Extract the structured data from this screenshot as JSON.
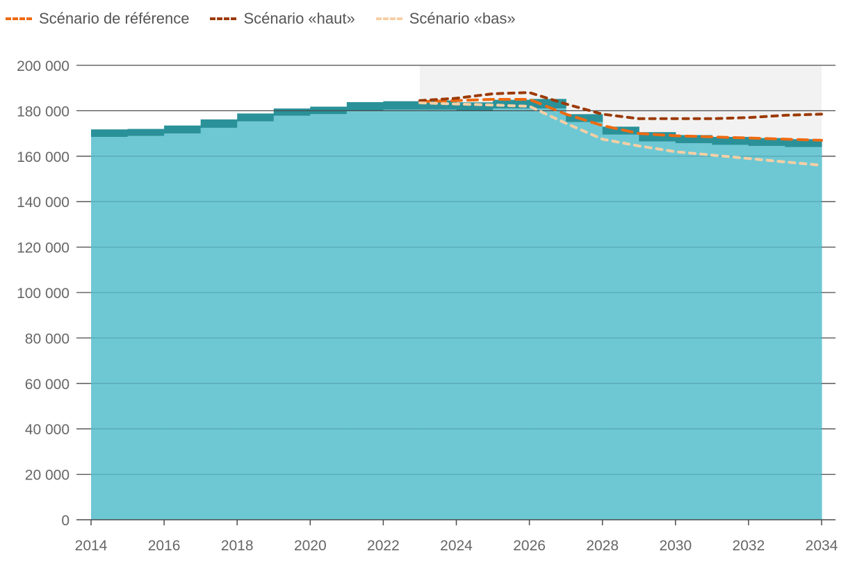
{
  "chart_data": {
    "type": "area",
    "title": "",
    "xlabel": "",
    "ylabel": "",
    "xlim": [
      2014,
      2034
    ],
    "ylim": [
      0,
      200000
    ],
    "yticks": [
      "0",
      "20 000",
      "40 000",
      "60 000",
      "80 000",
      "100 000",
      "120 000",
      "140 000",
      "160 000",
      "180 000",
      "200 000"
    ],
    "xticks": [
      "2014",
      "2016",
      "2018",
      "2020",
      "2022",
      "2024",
      "2026",
      "2028",
      "2030",
      "2032",
      "2034"
    ],
    "grid": "horizontal",
    "legend_position": "top-left",
    "projection_period": [
      2023,
      2034
    ],
    "stacked_steps": {
      "years": [
        2014,
        2015,
        2016,
        2017,
        2018,
        2019,
        2020,
        2021,
        2022,
        2023,
        2024,
        2025,
        2026,
        2027,
        2028,
        2029,
        2030,
        2031,
        2032,
        2033
      ],
      "base": [
        168500,
        168900,
        170000,
        172500,
        175300,
        177800,
        178500,
        180000,
        180500,
        180500,
        180000,
        181000,
        181000,
        175000,
        169500,
        166500,
        165700,
        165000,
        164500,
        164000
      ],
      "top": [
        171800,
        172000,
        173500,
        176200,
        178800,
        181000,
        181800,
        183800,
        184200,
        184500,
        183700,
        184800,
        185200,
        178500,
        173000,
        170600,
        169300,
        168500,
        168000,
        167500
      ]
    },
    "series": [
      {
        "name": "Scénario de référence",
        "x": [
          2023,
          2024,
          2025,
          2026,
          2027,
          2028,
          2029,
          2030,
          2031,
          2032,
          2033,
          2034
        ],
        "values": [
          184000,
          184500,
          185000,
          185000,
          178500,
          173500,
          170000,
          169000,
          168500,
          168000,
          167500,
          167000
        ]
      },
      {
        "name": "Scénario «haut»",
        "x": [
          2023,
          2024,
          2025,
          2026,
          2027,
          2028,
          2029,
          2030,
          2031,
          2032,
          2033,
          2034
        ],
        "values": [
          184500,
          185500,
          187500,
          188000,
          183000,
          178500,
          176500,
          176500,
          176500,
          177000,
          178000,
          178500
        ]
      },
      {
        "name": "Scénario «bas»",
        "x": [
          2023,
          2024,
          2025,
          2026,
          2027,
          2028,
          2029,
          2030,
          2031,
          2032,
          2033,
          2034
        ],
        "values": [
          183500,
          183000,
          182500,
          182000,
          174500,
          167500,
          164500,
          162000,
          160500,
          159000,
          157500,
          156000
        ]
      }
    ]
  },
  "colors": {
    "base_fill": "#6ec8d4",
    "top_band": "#2a9199",
    "shade": "#f2f2f2",
    "grid": "#4a4a4a",
    "grid_inner": "#55a9b4",
    "reference": "#ee6a12",
    "haut": "#9c3a06",
    "bas": "#f7cfa4"
  }
}
